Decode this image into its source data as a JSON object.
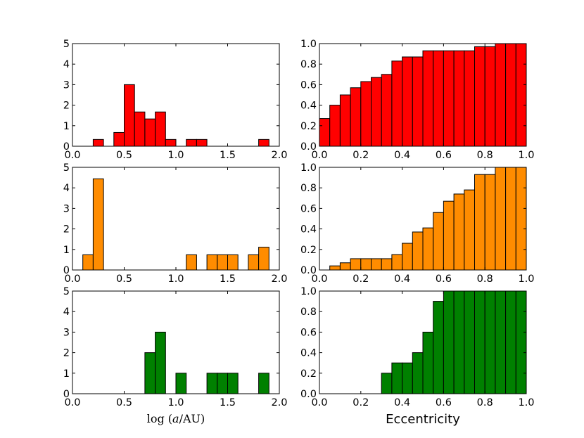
{
  "chart_data": [
    {
      "type": "bar",
      "panel": "top-left",
      "color": "#ff0000",
      "bin_width": 0.1,
      "xlim": [
        0.0,
        2.0
      ],
      "ylim": [
        0,
        5
      ],
      "xticks": [
        "0.0",
        "0.5",
        "1.0",
        "1.5",
        "2.0"
      ],
      "yticks": [
        "0",
        "1",
        "2",
        "3",
        "4",
        "5"
      ],
      "xlabel": "",
      "ylabel": "",
      "bars": [
        {
          "x": 0.2,
          "y": 0.33
        },
        {
          "x": 0.4,
          "y": 0.67
        },
        {
          "x": 0.5,
          "y": 3.0
        },
        {
          "x": 0.6,
          "y": 1.67
        },
        {
          "x": 0.7,
          "y": 1.33
        },
        {
          "x": 0.8,
          "y": 1.67
        },
        {
          "x": 0.9,
          "y": 0.33
        },
        {
          "x": 1.1,
          "y": 0.33
        },
        {
          "x": 1.2,
          "y": 0.33
        },
        {
          "x": 1.8,
          "y": 0.33
        }
      ]
    },
    {
      "type": "bar",
      "panel": "top-right",
      "color": "#ff0000",
      "bin_width": 0.05,
      "xlim": [
        0.0,
        1.0
      ],
      "ylim": [
        0,
        1.0
      ],
      "xticks": [
        "0.0",
        "0.2",
        "0.4",
        "0.6",
        "0.8",
        "1.0"
      ],
      "yticks": [
        "0.0",
        "0.2",
        "0.4",
        "0.6",
        "0.8",
        "1.0"
      ],
      "xlabel": "",
      "ylabel": "",
      "bars": [
        {
          "x": 0.0,
          "y": 0.27
        },
        {
          "x": 0.05,
          "y": 0.4
        },
        {
          "x": 0.1,
          "y": 0.5
        },
        {
          "x": 0.15,
          "y": 0.57
        },
        {
          "x": 0.2,
          "y": 0.63
        },
        {
          "x": 0.25,
          "y": 0.67
        },
        {
          "x": 0.3,
          "y": 0.7
        },
        {
          "x": 0.35,
          "y": 0.83
        },
        {
          "x": 0.4,
          "y": 0.87
        },
        {
          "x": 0.45,
          "y": 0.87
        },
        {
          "x": 0.5,
          "y": 0.93
        },
        {
          "x": 0.55,
          "y": 0.93
        },
        {
          "x": 0.6,
          "y": 0.93
        },
        {
          "x": 0.65,
          "y": 0.93
        },
        {
          "x": 0.7,
          "y": 0.93
        },
        {
          "x": 0.75,
          "y": 0.97
        },
        {
          "x": 0.8,
          "y": 0.97
        },
        {
          "x": 0.85,
          "y": 1.0
        },
        {
          "x": 0.9,
          "y": 1.0
        },
        {
          "x": 0.95,
          "y": 1.0
        }
      ]
    },
    {
      "type": "bar",
      "panel": "middle-left",
      "color": "#ff8c00",
      "bin_width": 0.1,
      "xlim": [
        0.0,
        2.0
      ],
      "ylim": [
        0,
        5
      ],
      "xticks": [
        "0.0",
        "0.5",
        "1.0",
        "1.5",
        "2.0"
      ],
      "yticks": [
        "0",
        "1",
        "2",
        "3",
        "4",
        "5"
      ],
      "xlabel": "",
      "ylabel": "",
      "bars": [
        {
          "x": 0.1,
          "y": 0.74
        },
        {
          "x": 0.2,
          "y": 4.44
        },
        {
          "x": 1.1,
          "y": 0.74
        },
        {
          "x": 1.3,
          "y": 0.74
        },
        {
          "x": 1.4,
          "y": 0.74
        },
        {
          "x": 1.5,
          "y": 0.74
        },
        {
          "x": 1.7,
          "y": 0.74
        },
        {
          "x": 1.8,
          "y": 1.11
        }
      ]
    },
    {
      "type": "bar",
      "panel": "middle-right",
      "color": "#ff8c00",
      "bin_width": 0.05,
      "xlim": [
        0.0,
        1.0
      ],
      "ylim": [
        0,
        1.0
      ],
      "xticks": [
        "0.0",
        "0.2",
        "0.4",
        "0.6",
        "0.8",
        "1.0"
      ],
      "yticks": [
        "0.0",
        "0.2",
        "0.4",
        "0.6",
        "0.8",
        "1.0"
      ],
      "xlabel": "",
      "ylabel": "",
      "bars": [
        {
          "x": 0.0,
          "y": 0.0
        },
        {
          "x": 0.05,
          "y": 0.04
        },
        {
          "x": 0.1,
          "y": 0.07
        },
        {
          "x": 0.15,
          "y": 0.11
        },
        {
          "x": 0.2,
          "y": 0.11
        },
        {
          "x": 0.25,
          "y": 0.11
        },
        {
          "x": 0.3,
          "y": 0.11
        },
        {
          "x": 0.35,
          "y": 0.15
        },
        {
          "x": 0.4,
          "y": 0.26
        },
        {
          "x": 0.45,
          "y": 0.37
        },
        {
          "x": 0.5,
          "y": 0.41
        },
        {
          "x": 0.55,
          "y": 0.56
        },
        {
          "x": 0.6,
          "y": 0.67
        },
        {
          "x": 0.65,
          "y": 0.74
        },
        {
          "x": 0.7,
          "y": 0.78
        },
        {
          "x": 0.75,
          "y": 0.93
        },
        {
          "x": 0.8,
          "y": 0.93
        },
        {
          "x": 0.85,
          "y": 1.0
        },
        {
          "x": 0.9,
          "y": 1.0
        },
        {
          "x": 0.95,
          "y": 1.0
        }
      ]
    },
    {
      "type": "bar",
      "panel": "bottom-left",
      "color": "#008000",
      "bin_width": 0.1,
      "xlim": [
        0.0,
        2.0
      ],
      "ylim": [
        0,
        5
      ],
      "xticks": [
        "0.0",
        "0.5",
        "1.0",
        "1.5",
        "2.0"
      ],
      "yticks": [
        "0",
        "1",
        "2",
        "3",
        "4",
        "5"
      ],
      "xlabel": "log (a/AU)",
      "ylabel": "",
      "bars": [
        {
          "x": 0.7,
          "y": 2.0
        },
        {
          "x": 0.8,
          "y": 3.0
        },
        {
          "x": 1.0,
          "y": 1.0
        },
        {
          "x": 1.3,
          "y": 1.0
        },
        {
          "x": 1.4,
          "y": 1.0
        },
        {
          "x": 1.5,
          "y": 1.0
        },
        {
          "x": 1.8,
          "y": 1.0
        }
      ]
    },
    {
      "type": "bar",
      "panel": "bottom-right",
      "color": "#008000",
      "bin_width": 0.05,
      "xlim": [
        0.0,
        1.0
      ],
      "ylim": [
        0,
        1.0
      ],
      "xticks": [
        "0.0",
        "0.2",
        "0.4",
        "0.6",
        "0.8",
        "1.0"
      ],
      "yticks": [
        "0.0",
        "0.2",
        "0.4",
        "0.6",
        "0.8",
        "1.0"
      ],
      "xlabel": "Eccentricity",
      "ylabel": "",
      "bars": [
        {
          "x": 0.3,
          "y": 0.2
        },
        {
          "x": 0.35,
          "y": 0.3
        },
        {
          "x": 0.4,
          "y": 0.3
        },
        {
          "x": 0.45,
          "y": 0.4
        },
        {
          "x": 0.5,
          "y": 0.6
        },
        {
          "x": 0.55,
          "y": 0.9
        },
        {
          "x": 0.6,
          "y": 1.0
        },
        {
          "x": 0.65,
          "y": 1.0
        },
        {
          "x": 0.7,
          "y": 1.0
        },
        {
          "x": 0.75,
          "y": 1.0
        },
        {
          "x": 0.8,
          "y": 1.0
        },
        {
          "x": 0.85,
          "y": 1.0
        },
        {
          "x": 0.9,
          "y": 1.0
        },
        {
          "x": 0.95,
          "y": 1.0
        }
      ]
    }
  ]
}
